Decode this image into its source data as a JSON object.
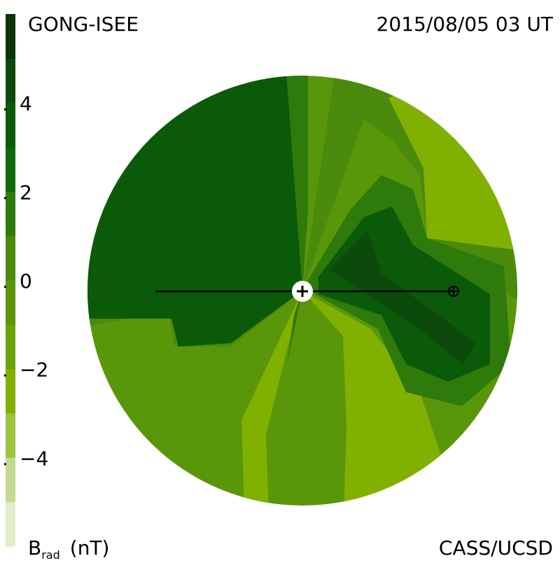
{
  "header": {
    "source": "GONG-ISEE",
    "timestamp": "2015/08/05 03 UT"
  },
  "footer": {
    "credit": "CASS/UCSD"
  },
  "colorbar": {
    "symbol": "B",
    "subscript": "rad",
    "unit": "(nT)",
    "range": [
      -6,
      6
    ],
    "ticks": [
      4,
      2,
      0,
      {
        "value": -2,
        "label": "−2"
      },
      {
        "value": -4,
        "label": "−4"
      }
    ],
    "colors": [
      "#e2edcc",
      "#c4da92",
      "#9cc43e",
      "#80b000",
      "#6aa208",
      "#5a960a",
      "#4a8a0c",
      "#2e7a0a",
      "#0b6a0b",
      "#0a5a0a",
      "#0b4a0b",
      "#083408"
    ]
  }
}
